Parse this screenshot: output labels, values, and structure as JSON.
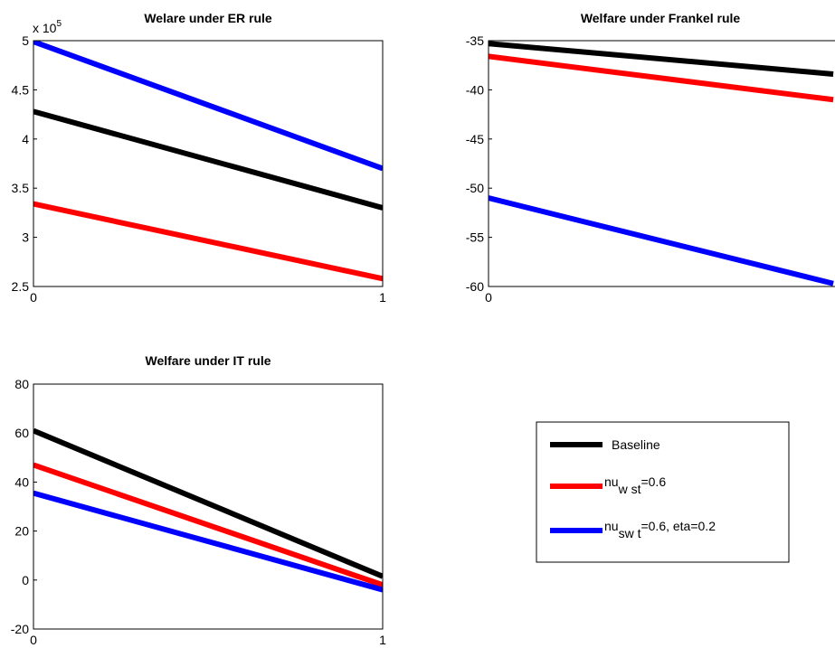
{
  "chart_data": [
    {
      "type": "line",
      "title": "Welare under ER rule",
      "multiplier": "x 10",
      "multiplier_exp": "5",
      "x": [
        0,
        1
      ],
      "xlim": [
        0,
        1
      ],
      "xticks": [
        "0",
        "1"
      ],
      "ylim": [
        2.5,
        5
      ],
      "yticks": [
        "2.5",
        "3",
        "3.5",
        "4",
        "4.5",
        "5"
      ],
      "series": [
        {
          "key": "black",
          "values": [
            4.28,
            3.3
          ]
        },
        {
          "key": "red",
          "values": [
            3.34,
            2.58
          ]
        },
        {
          "key": "blue",
          "values": [
            4.99,
            3.7
          ]
        }
      ]
    },
    {
      "type": "line",
      "title": "Welfare under Frankel rule",
      "x": [
        0,
        1
      ],
      "xlim": [
        0,
        1
      ],
      "xticks": [
        "0"
      ],
      "ylim": [
        -60,
        -35
      ],
      "yticks": [
        "-35",
        "-40",
        "-45",
        "-50",
        "-55",
        "-60"
      ],
      "series": [
        {
          "key": "black",
          "values": [
            -35.3,
            -38.4
          ]
        },
        {
          "key": "red",
          "values": [
            -36.6,
            -41.0
          ]
        },
        {
          "key": "blue",
          "values": [
            -51.0,
            -59.7
          ]
        }
      ]
    },
    {
      "type": "line",
      "title": "Welfare under IT rule",
      "x": [
        0,
        1
      ],
      "xlim": [
        0,
        1
      ],
      "xticks": [
        "0",
        "1"
      ],
      "ylim": [
        -20,
        80
      ],
      "yticks": [
        "80",
        "60",
        "40",
        "20",
        "0",
        "-20"
      ],
      "series": [
        {
          "key": "black",
          "values": [
            61,
            1.5
          ]
        },
        {
          "key": "red",
          "values": [
            47,
            -2
          ]
        },
        {
          "key": "blue",
          "values": [
            35.5,
            -4
          ]
        }
      ]
    }
  ],
  "legend": {
    "items": [
      {
        "key": "black",
        "label": "Baseline"
      },
      {
        "key": "red",
        "label": "nu",
        "sub": "w st",
        "tail": "=0.6"
      },
      {
        "key": "blue",
        "label": "nu",
        "sub": "sw t",
        "tail": "=0.6, eta=0.2"
      }
    ]
  },
  "colors": {
    "black": "#000000",
    "red": "#ff0000",
    "blue": "#0000ff"
  }
}
